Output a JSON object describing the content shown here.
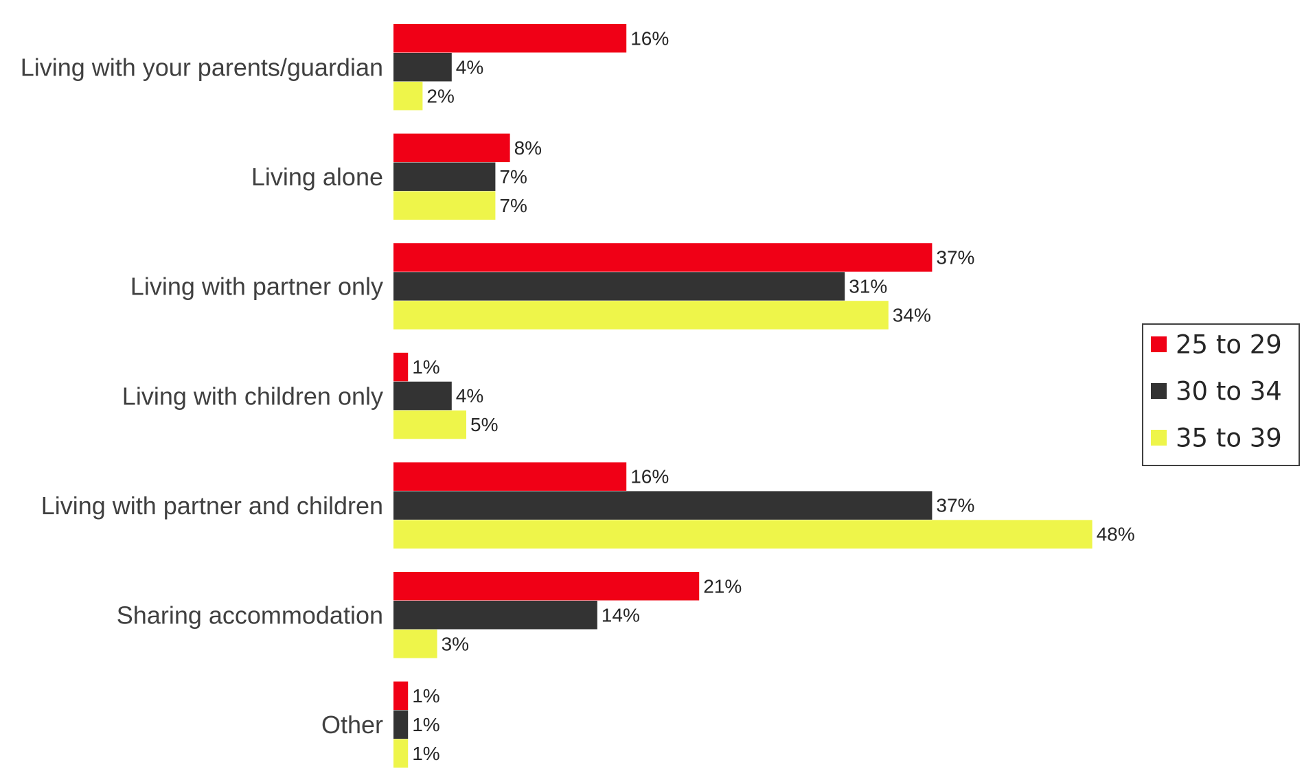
{
  "chart_data": {
    "type": "bar",
    "orientation": "horizontal",
    "categories": [
      "Living with your parents/guardian",
      "Living alone",
      "Living with partner only",
      "Living with children only",
      "Living with partner and children",
      "Sharing accommodation",
      "Other"
    ],
    "series": [
      {
        "name": "25 to 29",
        "color": "#f00016",
        "values": [
          16,
          8,
          37,
          1,
          16,
          21,
          1
        ]
      },
      {
        "name": "30 to 34",
        "color": "#333333",
        "values": [
          4,
          7,
          31,
          4,
          37,
          14,
          1
        ]
      },
      {
        "name": "35 to 39",
        "color": "#eef54a",
        "values": [
          2,
          7,
          34,
          5,
          48,
          3,
          1
        ]
      }
    ],
    "value_suffix": "%",
    "title": "",
    "xlabel": "",
    "ylabel": "",
    "xlim": [
      0,
      60
    ],
    "grid": false,
    "legend_position": "right",
    "data_labels": true
  }
}
